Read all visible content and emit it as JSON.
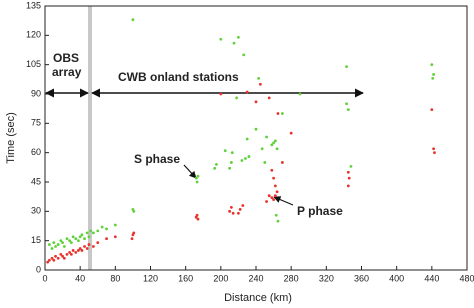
{
  "chart_data": {
    "type": "scatter",
    "xlabel": "Distance (km)",
    "ylabel": "Time (sec)",
    "xlim": [
      0,
      480
    ],
    "xticks": [
      0,
      40,
      80,
      120,
      160,
      200,
      240,
      280,
      320,
      360,
      400,
      440,
      480
    ],
    "ylim": [
      0,
      135
    ],
    "yticks": [
      0,
      15,
      30,
      45,
      60,
      75,
      90,
      105,
      120,
      135
    ],
    "annotations": [
      "OBS array",
      "CWB onland stations",
      "S phase",
      "P phase"
    ],
    "series": [
      {
        "name": "S phase",
        "color": "#5fd13a",
        "x": [
          5,
          8,
          10,
          12,
          15,
          18,
          20,
          22,
          25,
          28,
          30,
          32,
          35,
          38,
          40,
          42,
          45,
          48,
          50,
          52,
          55,
          60,
          65,
          70,
          80,
          100,
          100,
          101,
          172,
          173,
          174,
          193,
          195,
          200,
          205,
          210,
          212,
          213,
          215,
          218,
          220,
          224,
          226,
          228,
          230,
          232,
          240,
          243,
          247,
          250,
          252,
          258,
          260,
          262,
          264,
          263,
          265,
          270,
          290,
          343,
          343,
          345,
          348,
          440,
          441,
          442
        ],
        "y": [
          13,
          11,
          14,
          12,
          13,
          15,
          14,
          12,
          16,
          15,
          14,
          17,
          16,
          15,
          17,
          18,
          16,
          19,
          17,
          20,
          19,
          20,
          22,
          21,
          23,
          128,
          31,
          30,
          47,
          45,
          48,
          52,
          54,
          118,
          61,
          52,
          55,
          60,
          116,
          88,
          119,
          56,
          110,
          57,
          67,
          58,
          72,
          98,
          62,
          55,
          68,
          64,
          65,
          66,
          62,
          28,
          25,
          80,
          90,
          104,
          85,
          82,
          53,
          105,
          98,
          100
        ]
      },
      {
        "name": "P phase",
        "color": "#e8322c",
        "x": [
          3,
          5,
          8,
          10,
          12,
          15,
          18,
          20,
          22,
          25,
          28,
          30,
          32,
          35,
          38,
          40,
          42,
          45,
          48,
          50,
          55,
          60,
          70,
          80,
          100,
          99,
          101,
          172,
          173,
          174,
          200,
          210,
          212,
          214,
          220,
          222,
          225,
          230,
          240,
          245,
          252,
          255,
          258,
          260,
          262,
          264,
          258,
          260,
          262,
          255,
          265,
          270,
          280,
          345,
          346,
          345,
          440,
          442,
          443
        ],
        "y": [
          4,
          5,
          6,
          5,
          7,
          6,
          8,
          7,
          6,
          8,
          9,
          8,
          10,
          9,
          10,
          11,
          10,
          12,
          11,
          13,
          12,
          14,
          16,
          17,
          18,
          16,
          19,
          27,
          28,
          26,
          90,
          30,
          32,
          29,
          29,
          31,
          33,
          91,
          86,
          95,
          35,
          38,
          37,
          36,
          38,
          40,
          51,
          47,
          43,
          88,
          80,
          55,
          70,
          50,
          47,
          43,
          82,
          62,
          60
        ]
      }
    ]
  }
}
